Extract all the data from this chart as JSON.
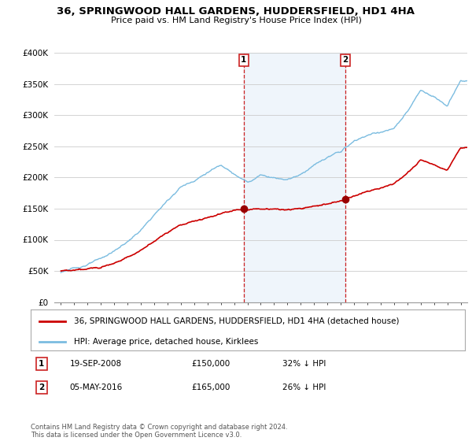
{
  "title": "36, SPRINGWOOD HALL GARDENS, HUDDERSFIELD, HD1 4HA",
  "subtitle": "Price paid vs. HM Land Registry's House Price Index (HPI)",
  "hpi_label": "HPI: Average price, detached house, Kirklees",
  "property_label": "36, SPRINGWOOD HALL GARDENS, HUDDERSFIELD, HD1 4HA (detached house)",
  "footnote": "Contains HM Land Registry data © Crown copyright and database right 2024.\nThis data is licensed under the Open Government Licence v3.0.",
  "sale1_date": 2008.72,
  "sale1_price": 150000,
  "sale2_date": 2016.35,
  "sale2_price": 165000,
  "ylim": [
    0,
    400000
  ],
  "xlim": [
    1994.5,
    2025.5
  ],
  "hpi_color": "#7bbce0",
  "property_color": "#cc0000",
  "sale_marker_color": "#990000",
  "background_color": "#ffffff",
  "grid_color": "#cccccc",
  "shade_color": "#ddeeff"
}
